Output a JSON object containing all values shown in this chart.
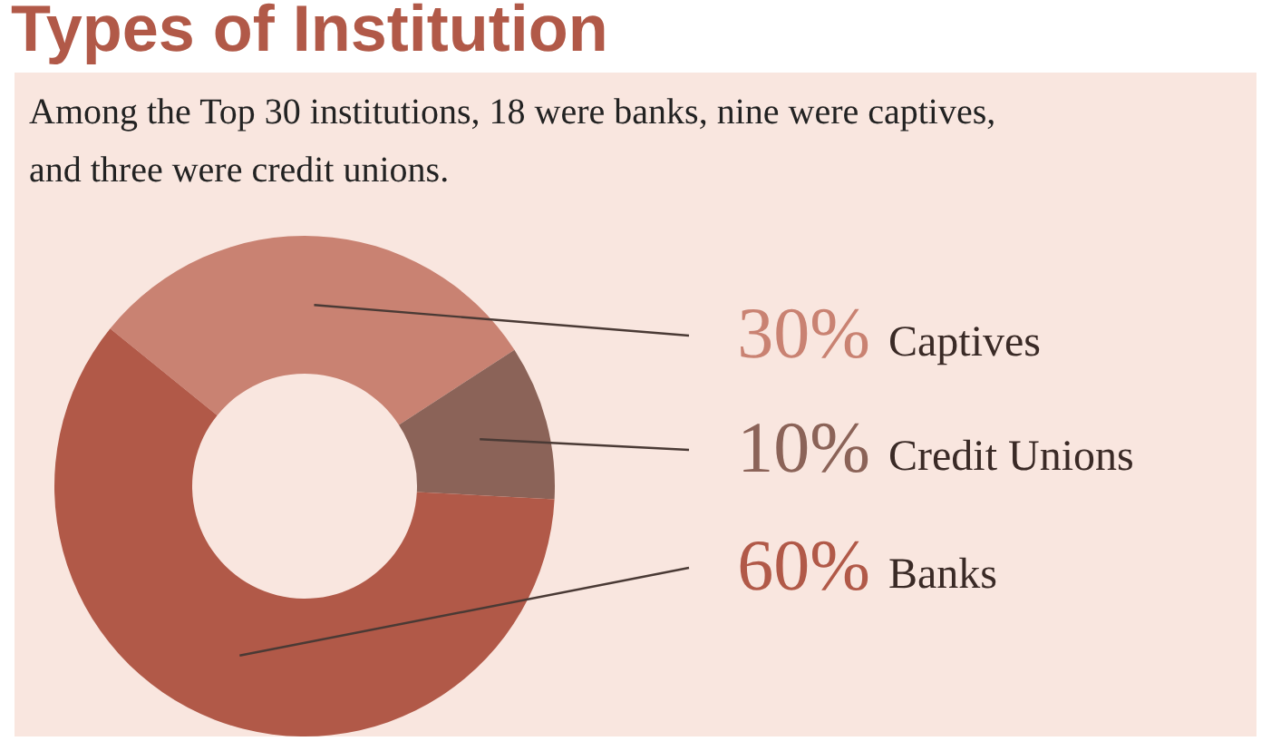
{
  "chart_data": {
    "type": "donut",
    "title": "Types of Institution",
    "subtitle": "Among the Top 30 institutions, 18 were banks, nine were captives, and three were credit unions.",
    "categories": [
      "Captives",
      "Credit Unions",
      "Banks"
    ],
    "values": [
      30,
      10,
      60
    ],
    "colors": [
      "#c98272",
      "#8b6358",
      "#b15948"
    ],
    "value_labels": [
      "30%",
      "10%",
      "60%"
    ]
  }
}
